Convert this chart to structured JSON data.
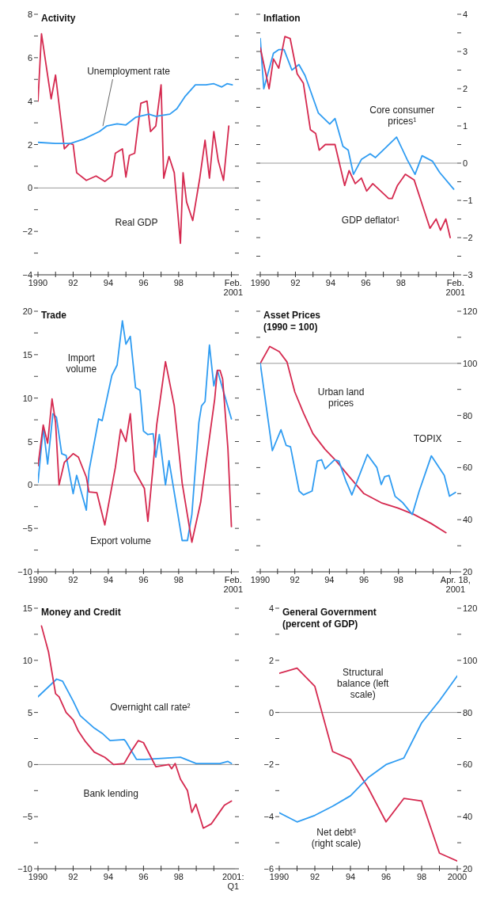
{
  "chart_data": [
    {
      "type": "line",
      "title": "Activity",
      "xlim": [
        1990,
        2001.2
      ],
      "xticks": [
        {
          "value": 1990,
          "label": "1990"
        },
        {
          "value": 1991,
          "label": null
        },
        {
          "value": 1992,
          "label": "92"
        },
        {
          "value": 1993,
          "label": null
        },
        {
          "value": 1994,
          "label": "94"
        },
        {
          "value": 1995,
          "label": null
        },
        {
          "value": 1996,
          "label": "96"
        },
        {
          "value": 1997,
          "label": null
        },
        {
          "value": 1998,
          "label": "98"
        },
        {
          "value": 1999,
          "label": null
        },
        {
          "value": 2000,
          "label": null
        },
        {
          "value": 2001,
          "label": null
        },
        {
          "value": 2001.1,
          "label": "Feb. 2001"
        }
      ],
      "ylim": [
        -4,
        8
      ],
      "yticks": [
        {
          "value": -4,
          "label": "−4"
        },
        {
          "value": -3,
          "label": null
        },
        {
          "value": -2,
          "label": "−2"
        },
        {
          "value": -1,
          "label": null
        },
        0,
        {
          "value": 1,
          "label": null
        },
        2,
        {
          "value": 3,
          "label": null
        },
        4,
        {
          "value": 5,
          "label": null
        },
        6,
        {
          "value": 7,
          "label": null
        },
        8
      ],
      "ref_lines": [
        {
          "axis": "y",
          "value": 0
        }
      ],
      "series": [
        {
          "name": "Real GDP",
          "color": "#d5294f",
          "x": [
            1990,
            1990.2,
            1990.6,
            1990.75,
            1991,
            1991.5,
            1991.8,
            1992,
            1992.2,
            1992.75,
            1993.3,
            1993.8,
            1994.2,
            1994.4,
            1994.8,
            1995,
            1995.2,
            1995.5,
            1995.85,
            1996.2,
            1996.4,
            1996.7,
            1997,
            1997.15,
            1997.45,
            1997.75,
            1998.1,
            1998.25,
            1998.45,
            1998.8,
            1999.2,
            1999.5,
            1999.75,
            2000,
            2000.25,
            2000.55,
            2000.85
          ],
          "values": [
            4,
            7.1,
            4.9,
            4.1,
            5.2,
            1.8,
            2.05,
            2,
            0.7,
            0.35,
            0.55,
            0.3,
            0.55,
            1.6,
            1.8,
            0.5,
            1.5,
            1.6,
            3.9,
            4,
            2.6,
            2.85,
            4.75,
            0.45,
            1.45,
            0.7,
            -2.55,
            0.7,
            -0.65,
            -1.5,
            0.45,
            2.2,
            0.45,
            2.6,
            1.25,
            0.35,
            2.85
          ]
        },
        {
          "name": "Unemployment rate",
          "color": "#2f9cf2",
          "x": [
            1990,
            1991,
            1991.85,
            1992.6,
            1993.5,
            1993.9,
            1994.5,
            1995,
            1995.55,
            1996.3,
            1996.7,
            1997.5,
            1997.9,
            1998.35,
            1998.95,
            1999.55,
            2000,
            2000.45,
            2000.75,
            2001.05
          ],
          "values": [
            2.1,
            2.05,
            2.05,
            2.25,
            2.6,
            2.85,
            2.95,
            2.9,
            3.25,
            3.4,
            3.3,
            3.4,
            3.65,
            4.2,
            4.75,
            4.75,
            4.8,
            4.65,
            4.8,
            4.75
          ]
        }
      ]
    },
    {
      "type": "line",
      "title": "Inflation",
      "xlim": [
        1990,
        2001.2
      ],
      "xticks": [
        {
          "value": 1990,
          "label": "1990"
        },
        {
          "value": 1991,
          "label": null
        },
        {
          "value": 1992,
          "label": "92"
        },
        {
          "value": 1993,
          "label": null
        },
        {
          "value": 1994,
          "label": "94"
        },
        {
          "value": 1995,
          "label": null
        },
        {
          "value": 1996,
          "label": "96"
        },
        {
          "value": 1997,
          "label": null
        },
        {
          "value": 1998,
          "label": "98"
        },
        {
          "value": 1999,
          "label": null
        },
        {
          "value": 2000,
          "label": null
        },
        {
          "value": 2001,
          "label": null
        },
        {
          "value": 2001.1,
          "label": "Feb. 2001"
        }
      ],
      "ylim": [
        -3,
        4
      ],
      "yticks": [
        {
          "value": -3,
          "label": "−3"
        },
        {
          "value": -2.5,
          "label": null
        },
        {
          "value": -2,
          "label": "−2"
        },
        {
          "value": -1.5,
          "label": null
        },
        {
          "value": -1,
          "label": "−1"
        },
        {
          "value": -0.5,
          "label": null
        },
        0,
        {
          "value": 0.5,
          "label": null
        },
        1,
        {
          "value": 1.5,
          "label": null
        },
        2,
        {
          "value": 2.5,
          "label": null
        },
        3,
        {
          "value": 3.5,
          "label": null
        },
        4
      ],
      "ref_lines": [
        {
          "axis": "y",
          "value": 0
        }
      ],
      "series": [
        {
          "name": "Core consumer prices¹",
          "color": "#2f9cf2",
          "x": [
            1990,
            1990.2,
            1990.75,
            1991.05,
            1991.35,
            1991.8,
            1992.2,
            1992.55,
            1993.3,
            1993.95,
            1994.25,
            1994.7,
            1995,
            1995.3,
            1995.75,
            1996.25,
            1996.55,
            1997.1,
            1997.75,
            1998.35,
            1998.8,
            1999.2,
            1999.8,
            2000.2,
            2001
          ],
          "values": [
            3.35,
            2,
            2.95,
            3.05,
            3.05,
            2.5,
            2.65,
            2.35,
            1.35,
            1.05,
            1.2,
            0.45,
            0.35,
            -0.3,
            0.1,
            0.25,
            0.15,
            0.4,
            0.7,
            0.1,
            -0.3,
            0.2,
            0.05,
            -0.25,
            -0.7
          ]
        },
        {
          "name": "GDP deflator¹",
          "color": "#d5294f",
          "x": [
            1990,
            1990.5,
            1990.75,
            1991.05,
            1991.4,
            1991.7,
            1992.1,
            1992.45,
            1992.85,
            1993.15,
            1993.35,
            1993.7,
            1994.25,
            1994.8,
            1995.05,
            1995.4,
            1995.75,
            1996.05,
            1996.4,
            1997.3,
            1997.5,
            1997.8,
            1998.25,
            1998.75,
            1999.65,
            2000,
            2000.25,
            2000.55,
            2000.8
          ],
          "values": [
            3.1,
            2,
            2.8,
            2.55,
            3.4,
            3.35,
            2.4,
            2.15,
            0.9,
            0.8,
            0.35,
            0.5,
            0.5,
            -0.6,
            -0.2,
            -0.55,
            -0.4,
            -0.75,
            -0.55,
            -0.95,
            -0.95,
            -0.6,
            -0.3,
            -0.45,
            -1.75,
            -1.5,
            -1.8,
            -1.5,
            -2
          ]
        }
      ]
    },
    {
      "type": "line",
      "title": "Trade",
      "xlim": [
        1990,
        2001.2
      ],
      "xticks": [
        {
          "value": 1990,
          "label": "1990"
        },
        {
          "value": 1991,
          "label": null
        },
        {
          "value": 1992,
          "label": "92"
        },
        {
          "value": 1993,
          "label": null
        },
        {
          "value": 1994,
          "label": "94"
        },
        {
          "value": 1995,
          "label": null
        },
        {
          "value": 1996,
          "label": "96"
        },
        {
          "value": 1997,
          "label": null
        },
        {
          "value": 1998,
          "label": "98"
        },
        {
          "value": 1999,
          "label": null
        },
        {
          "value": 2000,
          "label": null
        },
        {
          "value": 2001,
          "label": null
        },
        {
          "value": 2001.1,
          "label": "Feb. 2001"
        }
      ],
      "ylim": [
        -10,
        20
      ],
      "yticks": [
        {
          "value": -10,
          "label": "−10"
        },
        {
          "value": -7.5,
          "label": null
        },
        {
          "value": -5,
          "label": "−5"
        },
        {
          "value": -2.5,
          "label": null
        },
        0,
        {
          "value": 2.5,
          "label": null
        },
        5,
        {
          "value": 7.5,
          "label": null
        },
        10,
        {
          "value": 12.5,
          "label": null
        },
        15,
        {
          "value": 17.5,
          "label": null
        },
        20
      ],
      "ref_lines": [
        {
          "axis": "y",
          "value": 0
        }
      ],
      "series": [
        {
          "name": "Import volume",
          "color": "#2f9cf2",
          "x": [
            1990,
            1990.3,
            1990.55,
            1990.85,
            1991.05,
            1991.35,
            1991.6,
            1992,
            1992.2,
            1992.75,
            1992.9,
            1993.45,
            1993.65,
            1994.2,
            1994.5,
            1994.8,
            1995,
            1995.25,
            1995.55,
            1995.8,
            1996,
            1996.25,
            1996.55,
            1996.7,
            1996.9,
            1997.25,
            1997.45,
            1998.2,
            1998.5,
            1998.75,
            1999.15,
            1999.3,
            1999.5,
            1999.75,
            2000,
            2000.2,
            2001
          ],
          "values": [
            0.3,
            6.6,
            2.4,
            8.2,
            7.8,
            3.6,
            3.4,
            -1,
            1.1,
            -2.9,
            1.6,
            7.6,
            7.4,
            12.6,
            13.8,
            18.9,
            16.2,
            17.1,
            11.2,
            10.9,
            6.2,
            5.8,
            5.9,
            3.2,
            5.8,
            0,
            2.8,
            -6.4,
            -6.4,
            -3.4,
            7.2,
            9.1,
            9.6,
            16.1,
            11.4,
            13.2,
            7.6
          ]
        },
        {
          "name": "Export volume",
          "color": "#d5294f",
          "x": [
            1990,
            1990.3,
            1990.55,
            1990.8,
            1991,
            1991.2,
            1991.5,
            1992,
            1992.3,
            1992.75,
            1992.9,
            1993.35,
            1993.8,
            1994.4,
            1994.7,
            1995,
            1995.25,
            1995.5,
            1996.05,
            1996.25,
            1996.55,
            1996.75,
            1997.25,
            1997.75,
            1998.2,
            1998.75,
            1999.25,
            2000.05,
            2000.2,
            2000.35,
            2000.5,
            2000.8,
            2001
          ],
          "values": [
            2.2,
            6.9,
            4.8,
            9.9,
            7.2,
            0,
            2.6,
            3.6,
            3.2,
            0.9,
            -0.8,
            -0.9,
            -4.6,
            2,
            6.4,
            5,
            8.2,
            1.6,
            -0.4,
            -4.2,
            2.2,
            6.9,
            14.2,
            9.1,
            0.2,
            -6.6,
            -2,
            9.9,
            13.2,
            13.2,
            12.2,
            4.2,
            -4.8
          ]
        }
      ]
    },
    {
      "type": "line",
      "title": "Asset Prices",
      "subtitle": "(1990 = 100)",
      "xlim": [
        1990,
        2001.4
      ],
      "xticks": [
        {
          "value": 1990,
          "label": "1990"
        },
        {
          "value": 1991,
          "label": null
        },
        {
          "value": 1992,
          "label": "92"
        },
        {
          "value": 1993,
          "label": null
        },
        {
          "value": 1994,
          "label": "94"
        },
        {
          "value": 1995,
          "label": null
        },
        {
          "value": 1996,
          "label": "96"
        },
        {
          "value": 1997,
          "label": null
        },
        {
          "value": 1998,
          "label": "98"
        },
        {
          "value": 1999,
          "label": null
        },
        {
          "value": 2000,
          "label": null
        },
        {
          "value": 2001,
          "label": null
        },
        {
          "value": 2001.3,
          "label": "Apr. 18, 2001"
        }
      ],
      "ylim": [
        20,
        120
      ],
      "yticks": [
        20,
        {
          "value": 30,
          "label": null
        },
        40,
        {
          "value": 50,
          "label": null
        },
        60,
        {
          "value": 70,
          "label": null
        },
        80,
        {
          "value": 90,
          "label": null
        },
        100,
        {
          "value": 110,
          "label": null
        },
        120
      ],
      "ref_lines": [
        {
          "axis": "y",
          "value": 100
        }
      ],
      "series": [
        {
          "name": "Urban land prices",
          "color": "#d5294f",
          "x": [
            1990,
            1990.55,
            1991.1,
            1991.55,
            1992,
            1992.5,
            1993.05,
            1993.75,
            1994.4,
            1995.15,
            1996,
            1997,
            1997.95,
            1998.9,
            1999.9,
            2000.75
          ],
          "values": [
            100,
            106.5,
            104.5,
            100.5,
            89,
            81,
            73,
            67,
            62.5,
            56.5,
            50,
            46.5,
            44.5,
            42,
            38.5,
            35
          ]
        },
        {
          "name": "TOPIX",
          "color": "#2f9cf2",
          "x": [
            1990,
            1990.7,
            1991.2,
            1991.5,
            1991.75,
            1992.25,
            1992.5,
            1993,
            1993.3,
            1993.55,
            1993.75,
            1994.3,
            1994.55,
            1994.95,
            1995.3,
            1996.2,
            1996.75,
            1997,
            1997.2,
            1997.45,
            1997.8,
            1998.25,
            1998.8,
            1999.2,
            1999.9,
            2000.65,
            2000.95,
            2001.3
          ],
          "values": [
            100,
            66.5,
            74.5,
            68.5,
            68,
            51,
            49.5,
            51,
            62.5,
            63,
            59.5,
            63,
            62.5,
            55,
            49.5,
            65,
            60,
            53.5,
            56.5,
            57,
            49,
            46.5,
            42,
            51,
            64.5,
            57,
            49,
            50.5
          ]
        }
      ]
    },
    {
      "type": "line",
      "title": "Money and Credit",
      "xlim": [
        1990,
        2001.2
      ],
      "xticks": [
        {
          "value": 1990,
          "label": "1990"
        },
        {
          "value": 1991,
          "label": null
        },
        {
          "value": 1992,
          "label": "92"
        },
        {
          "value": 1993,
          "label": null
        },
        {
          "value": 1994,
          "label": "94"
        },
        {
          "value": 1995,
          "label": null
        },
        {
          "value": 1996,
          "label": "96"
        },
        {
          "value": 1997,
          "label": null
        },
        {
          "value": 1998,
          "label": "98"
        },
        {
          "value": 1999,
          "label": null
        },
        {
          "value": 2000,
          "label": null
        },
        {
          "value": 2001.1,
          "label": "2001: Q1"
        }
      ],
      "ylim": [
        -10,
        15
      ],
      "yticks": [
        {
          "value": -10,
          "label": "−10"
        },
        {
          "value": -7.5,
          "label": null
        },
        {
          "value": -5,
          "label": "−5"
        },
        {
          "value": -2.5,
          "label": null
        },
        0,
        {
          "value": 2.5,
          "label": null
        },
        5,
        {
          "value": 7.5,
          "label": null
        },
        10,
        {
          "value": 12.5,
          "label": null
        },
        15
      ],
      "ref_lines": [
        {
          "axis": "y",
          "value": 0
        }
      ],
      "series": [
        {
          "name": "Overnight call rate²",
          "color": "#2f9cf2",
          "x": [
            1990,
            1991.06,
            1991.4,
            1992,
            1992.4,
            1993.2,
            1993.65,
            1994.1,
            1994.9,
            1995,
            1995.6,
            1996.1,
            1998.1,
            1999,
            2000.35,
            2000.8,
            2001
          ],
          "values": [
            6.5,
            8.2,
            8,
            6.1,
            4.7,
            3.5,
            3,
            2.3,
            2.4,
            2.2,
            0.5,
            0.5,
            0.7,
            0.1,
            0.1,
            0.3,
            0.1
          ]
        },
        {
          "name": "Bank lending",
          "color": "#d5294f",
          "x": [
            1990.2,
            1990.6,
            1991,
            1991.2,
            1991.6,
            1992,
            1992.3,
            1992.7,
            1993.2,
            1993.8,
            1994.3,
            1994.9,
            1995.35,
            1995.7,
            1996,
            1996.7,
            1997.45,
            1997.6,
            1997.8,
            1998.1,
            1998.5,
            1998.75,
            1998.98,
            1999.4,
            1999.85,
            2000.35,
            2000.6,
            2001
          ],
          "values": [
            13.3,
            10.8,
            6.8,
            6.5,
            5,
            4.3,
            3.2,
            2.2,
            1.2,
            0.7,
            0,
            0.1,
            1.4,
            2.3,
            2.1,
            -0.2,
            0,
            -0.4,
            0.1,
            -1.4,
            -2.5,
            -4.6,
            -3.8,
            -6.1,
            -5.7,
            -4.5,
            -3.9,
            -3.5
          ]
        }
      ]
    },
    {
      "type": "line",
      "title": "General Government",
      "subtitle": "(percent of GDP)",
      "xlim": [
        1990,
        2000
      ],
      "xticks": [
        {
          "value": 1990,
          "label": "1990"
        },
        {
          "value": 1991,
          "label": null
        },
        {
          "value": 1992,
          "label": "92"
        },
        {
          "value": 1993,
          "label": null
        },
        {
          "value": 1994,
          "label": "94"
        },
        {
          "value": 1995,
          "label": null
        },
        {
          "value": 1996,
          "label": "96"
        },
        {
          "value": 1997,
          "label": null
        },
        {
          "value": 1998,
          "label": "98"
        },
        {
          "value": 1999,
          "label": null
        },
        {
          "value": 2000,
          "label": "2000"
        }
      ],
      "ylim": [
        -6,
        4
      ],
      "yticks": [
        {
          "value": -6,
          "label": "−6"
        },
        {
          "value": -5,
          "label": null
        },
        {
          "value": -4,
          "label": "−4"
        },
        {
          "value": -3,
          "label": null
        },
        {
          "value": -2,
          "label": "−2"
        },
        {
          "value": -1,
          "label": null
        },
        0,
        {
          "value": 1,
          "label": null
        },
        2,
        {
          "value": 3,
          "label": null
        },
        4
      ],
      "y2lim": [
        20,
        120
      ],
      "y2ticks": [
        20,
        {
          "value": 30,
          "label": null
        },
        40,
        {
          "value": 50,
          "label": null
        },
        60,
        {
          "value": 70,
          "label": null
        },
        80,
        {
          "value": 90,
          "label": null
        },
        100,
        {
          "value": 110,
          "label": null
        },
        120
      ],
      "ref_lines": [
        {
          "axis": "y",
          "value": 0
        }
      ],
      "series": [
        {
          "name": "Structural balance (left scale)",
          "color": "#d5294f",
          "x": [
            1990,
            1991,
            1992,
            1993,
            1994,
            1995,
            1996,
            1997,
            1998,
            1999,
            2000
          ],
          "values": [
            1.5,
            1.7,
            1,
            -1.5,
            -1.8,
            -2.9,
            -4.2,
            -3.3,
            -3.4,
            -5.4,
            -5.7
          ]
        },
        {
          "name": "Net debt³ (right scale)",
          "color": "#2f9cf2",
          "axis": "y2",
          "x": [
            1990,
            1991,
            1992,
            1993,
            1994,
            1995,
            1996,
            1997,
            1998,
            1999,
            2000
          ],
          "values": [
            41.5,
            38,
            40.5,
            44,
            48,
            55,
            60,
            62.5,
            76,
            84.5,
            94
          ]
        }
      ]
    }
  ]
}
